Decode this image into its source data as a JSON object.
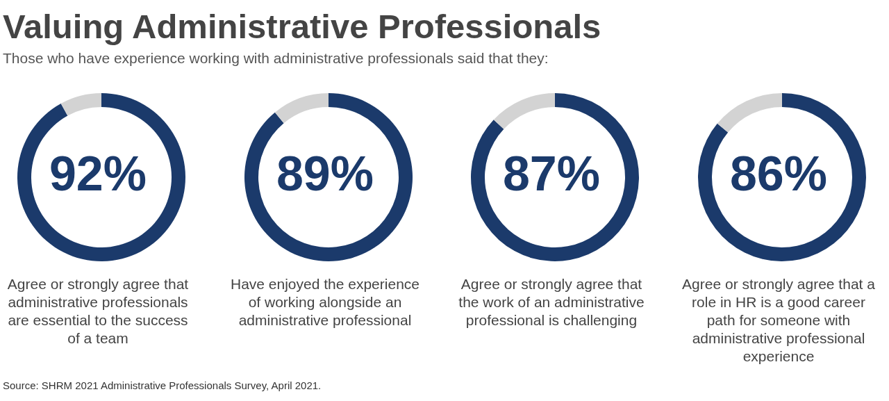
{
  "chart_data": [
    {
      "type": "donut",
      "title": "Valuing Administrative Professionals",
      "subtitle": "Those who have experience working with administrative professionals said that they:",
      "categories": [
        null,
        null
      ],
      "values": [
        92,
        8
      ],
      "colors": [
        "#1b3a6b",
        "#d3d3d3"
      ],
      "value_labels": [
        "92%",
        null
      ],
      "annotations": [
        "Agree or strongly agree that administrative professionals are essential to the success of a team"
      ]
    },
    {
      "type": "donut",
      "categories": [
        null,
        null
      ],
      "values": [
        89,
        11
      ],
      "colors": [
        "#1b3a6b",
        "#d3d3d3"
      ],
      "value_labels": [
        "89%",
        null
      ],
      "annotations": [
        "Have enjoyed the experience of working alongside an administrative professional"
      ]
    },
    {
      "type": "donut",
      "categories": [
        null,
        null
      ],
      "values": [
        87,
        13
      ],
      "colors": [
        "#1b3a6b",
        "#d3d3d3"
      ],
      "value_labels": [
        "87%",
        null
      ],
      "annotations": [
        "Agree or strongly agree that the work of an administrative professional is challenging"
      ]
    },
    {
      "type": "donut",
      "categories": [
        null,
        null
      ],
      "values": [
        86,
        14
      ],
      "colors": [
        "#1b3a6b",
        "#d3d3d3"
      ],
      "value_labels": [
        "86%",
        null
      ],
      "annotations": [
        "Agree or strongly agree that a role in HR is a good career path for someone with administrative professional experience",
        "Source: SHRM 2021 Administrative Professionals Survey, April 2021."
      ]
    }
  ]
}
